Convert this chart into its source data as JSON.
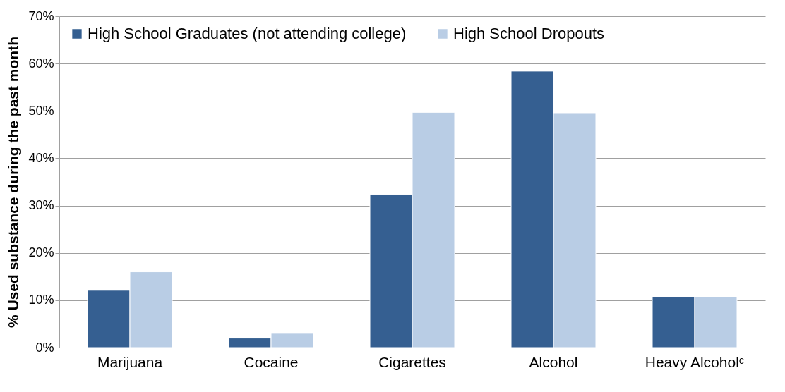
{
  "chart_data": {
    "type": "bar",
    "ylabel": "% Used substance during the past month",
    "categories": [
      "Marijuana",
      "Cocaine",
      "Cigarettes",
      "Alcohol",
      "Heavy Alcoholᶜ"
    ],
    "series": [
      {
        "name": "High School Graduates (not attending college)",
        "color": "#355f91",
        "values": [
          12.1,
          2,
          32.4,
          58.4,
          10.8
        ]
      },
      {
        "name": "High School Dropouts",
        "color": "#b9cde5",
        "values": [
          16,
          3,
          49.7,
          49.6,
          10.8
        ]
      }
    ],
    "ylim": [
      0,
      70
    ],
    "yticks": [
      {
        "value": 0,
        "label": "0%"
      },
      {
        "value": 10,
        "label": "10%"
      },
      {
        "value": 20,
        "label": "20%"
      },
      {
        "value": 30,
        "label": "30%"
      },
      {
        "value": 40,
        "label": "40%"
      },
      {
        "value": 50,
        "label": "50%"
      },
      {
        "value": 60,
        "label": "60%"
      },
      {
        "value": 70,
        "label": "70%"
      }
    ],
    "grid": "y",
    "legend": "top left"
  }
}
